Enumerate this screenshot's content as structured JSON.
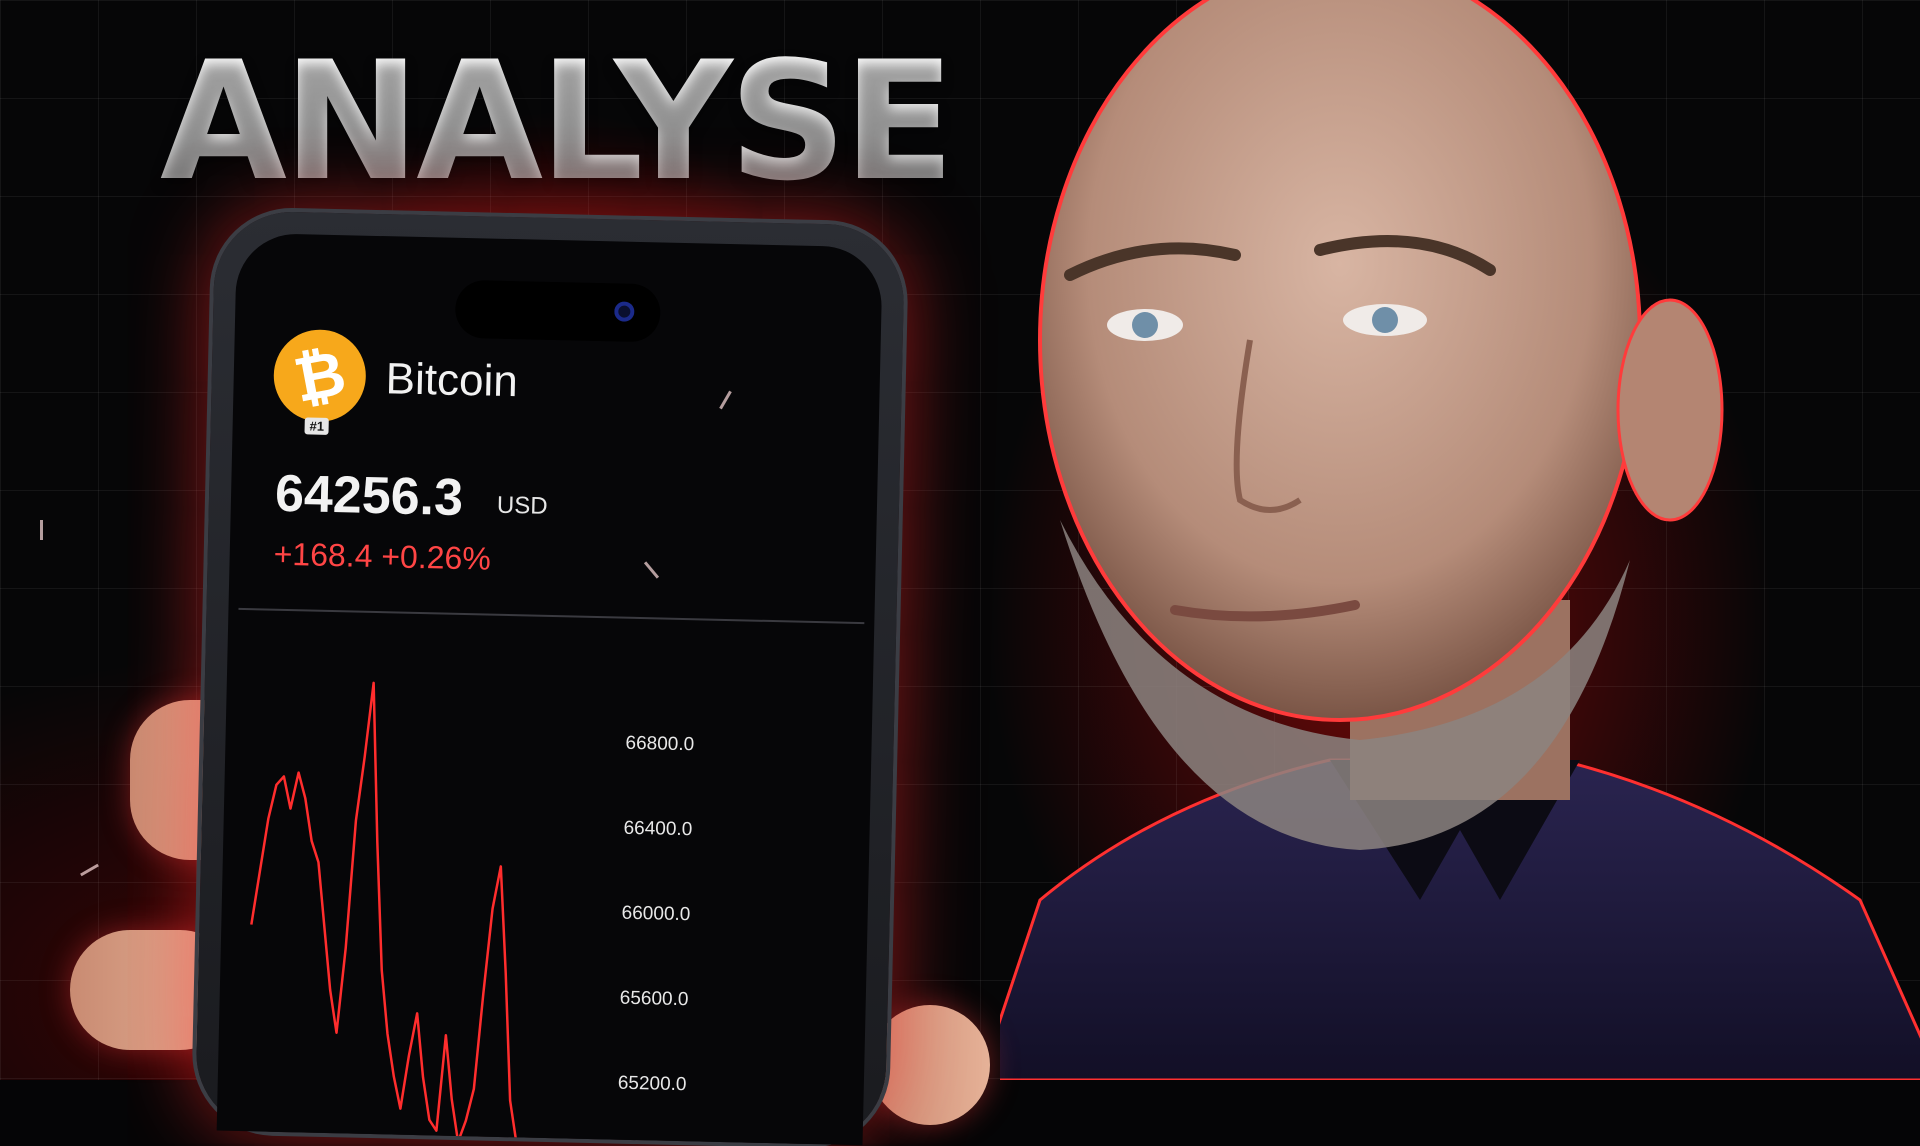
{
  "headline": "ANALYSE",
  "coin": {
    "name": "Bitcoin",
    "symbol_glyph": "₿",
    "rank": "#1",
    "logo_color": "#f7a81b",
    "price": "64256.3",
    "currency": "USD",
    "change": "+168.4 +0.26%",
    "change_color": "#ff4545"
  },
  "chart_data": {
    "type": "line",
    "y_tick_labels": [
      "66800.0",
      "66400.0",
      "66000.0",
      "65600.0",
      "65200.0"
    ],
    "series": [
      {
        "color": "#ff2d2d",
        "values": [
          65900,
          66150,
          66400,
          66560,
          66600,
          66450,
          66620,
          66500,
          66300,
          66200,
          65900,
          65600,
          65400,
          65800,
          66400,
          66700,
          67050,
          66300,
          65700,
          65400,
          65200,
          65050,
          65300,
          65500,
          65200,
          65000,
          64950,
          65400,
          65100,
          64900,
          65000,
          65150,
          65600,
          66000,
          66200,
          65700,
          65100,
          64900
        ]
      }
    ]
  },
  "accent_color": "#e01414"
}
